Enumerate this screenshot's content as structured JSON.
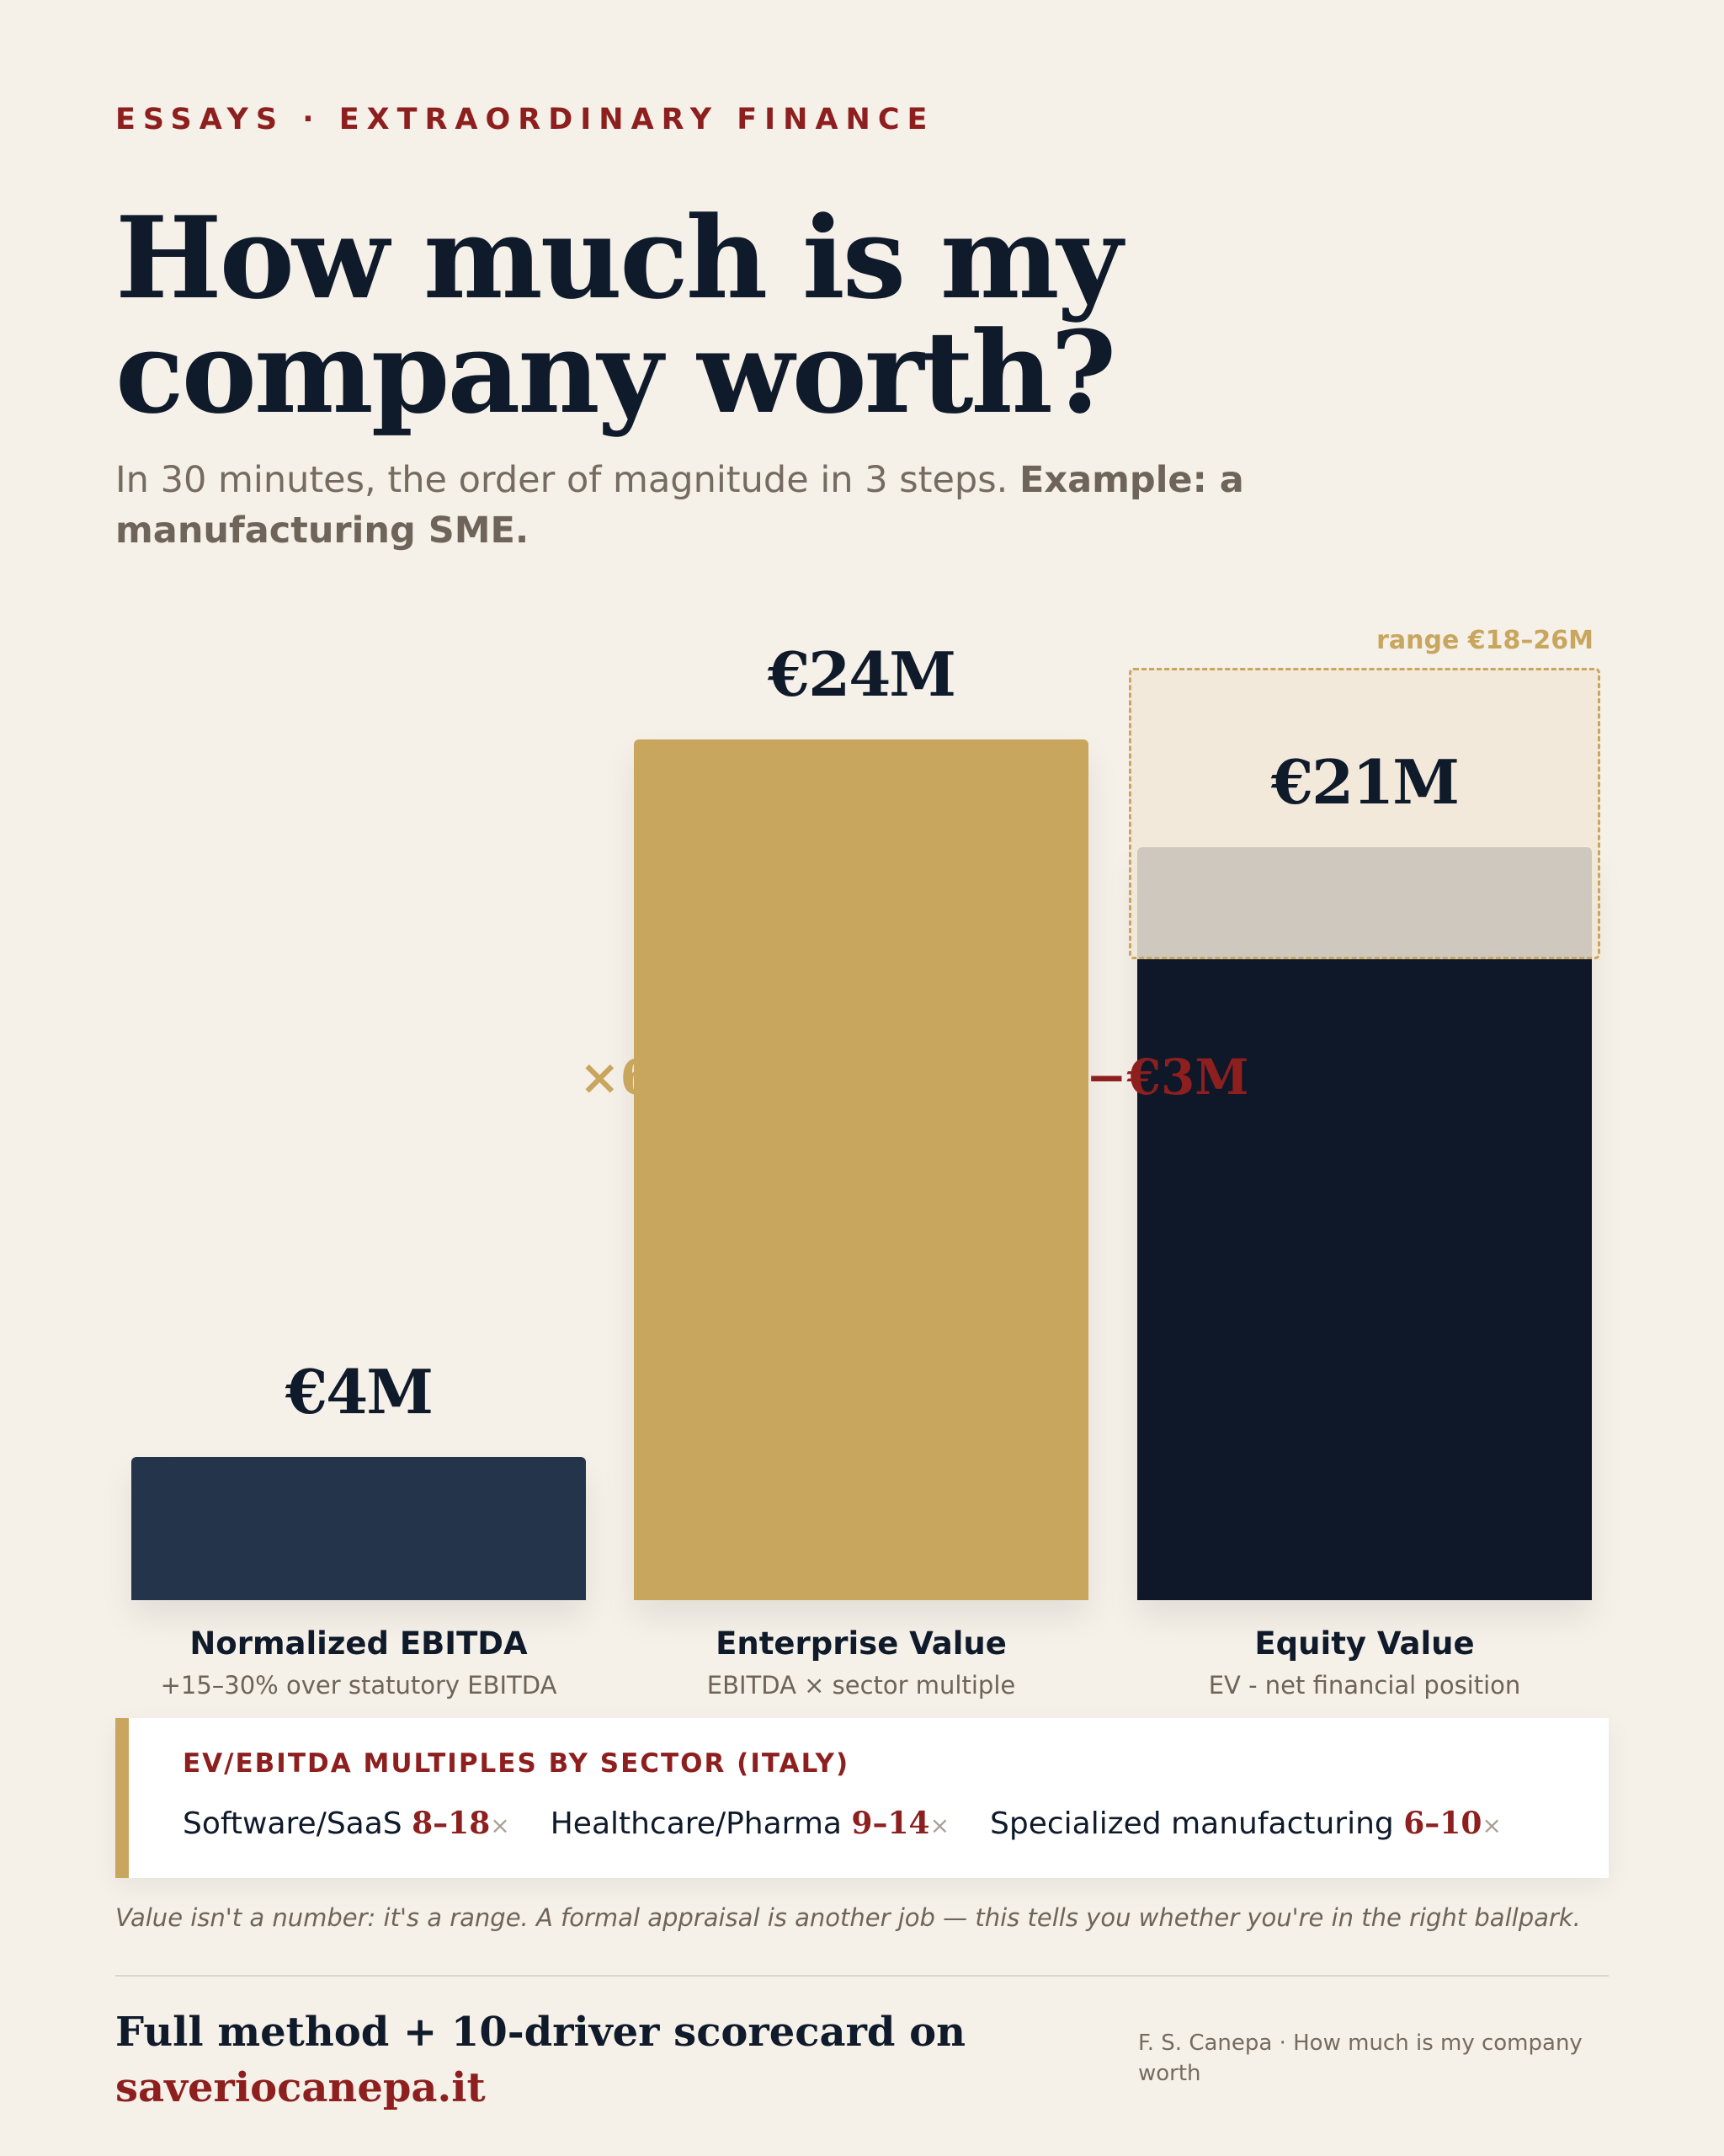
{
  "kicker": "ESSAYS · EXTRAORDINARY FINANCE",
  "title": "How much is my company worth?",
  "subtitle": {
    "lead": "In 30 minutes, the order of magnitude in 3 steps.",
    "bold": "Example: a manufacturing SME."
  },
  "chart_data": {
    "type": "bar",
    "categories": [
      "Normalized EBITDA",
      "Enterprise Value",
      "Equity Value"
    ],
    "category_notes": [
      "+15–30% over statutory EBITDA",
      "EBITDA × sector multiple",
      "EV - net financial position"
    ],
    "values": [
      4,
      24,
      21
    ],
    "value_labels": [
      "€4M",
      "€24M",
      "€21M"
    ],
    "unit": "€M",
    "ylim": [
      0,
      24
    ],
    "colors": [
      "#24344b",
      "#c9a65e",
      "#0e1828"
    ],
    "operators": [
      "×6",
      "−€3M"
    ],
    "operator_colors": [
      "#c9a65e",
      "#8e1f1f"
    ],
    "range": {
      "label": "range €18–26M",
      "low": 18,
      "high": 26
    }
  },
  "multiples": {
    "title": "EV/EBITDA MULTIPLES BY SECTOR (ITALY)",
    "items": [
      {
        "sector": "Software/SaaS",
        "range": "8–18",
        "suffix": "×"
      },
      {
        "sector": "Healthcare/Pharma",
        "range": "9–14",
        "suffix": "×"
      },
      {
        "sector": "Specialized manufacturing",
        "range": "6–10",
        "suffix": "×"
      }
    ]
  },
  "note": "Value isn't a number: it's a range. A formal appraisal is another job — this tells you whether you're in the right ballpark.",
  "cta": {
    "text": "Full method + 10-driver scorecard on",
    "link": "saveriocanepa.it"
  },
  "credit": "F. S. Canepa · How much is my company worth"
}
